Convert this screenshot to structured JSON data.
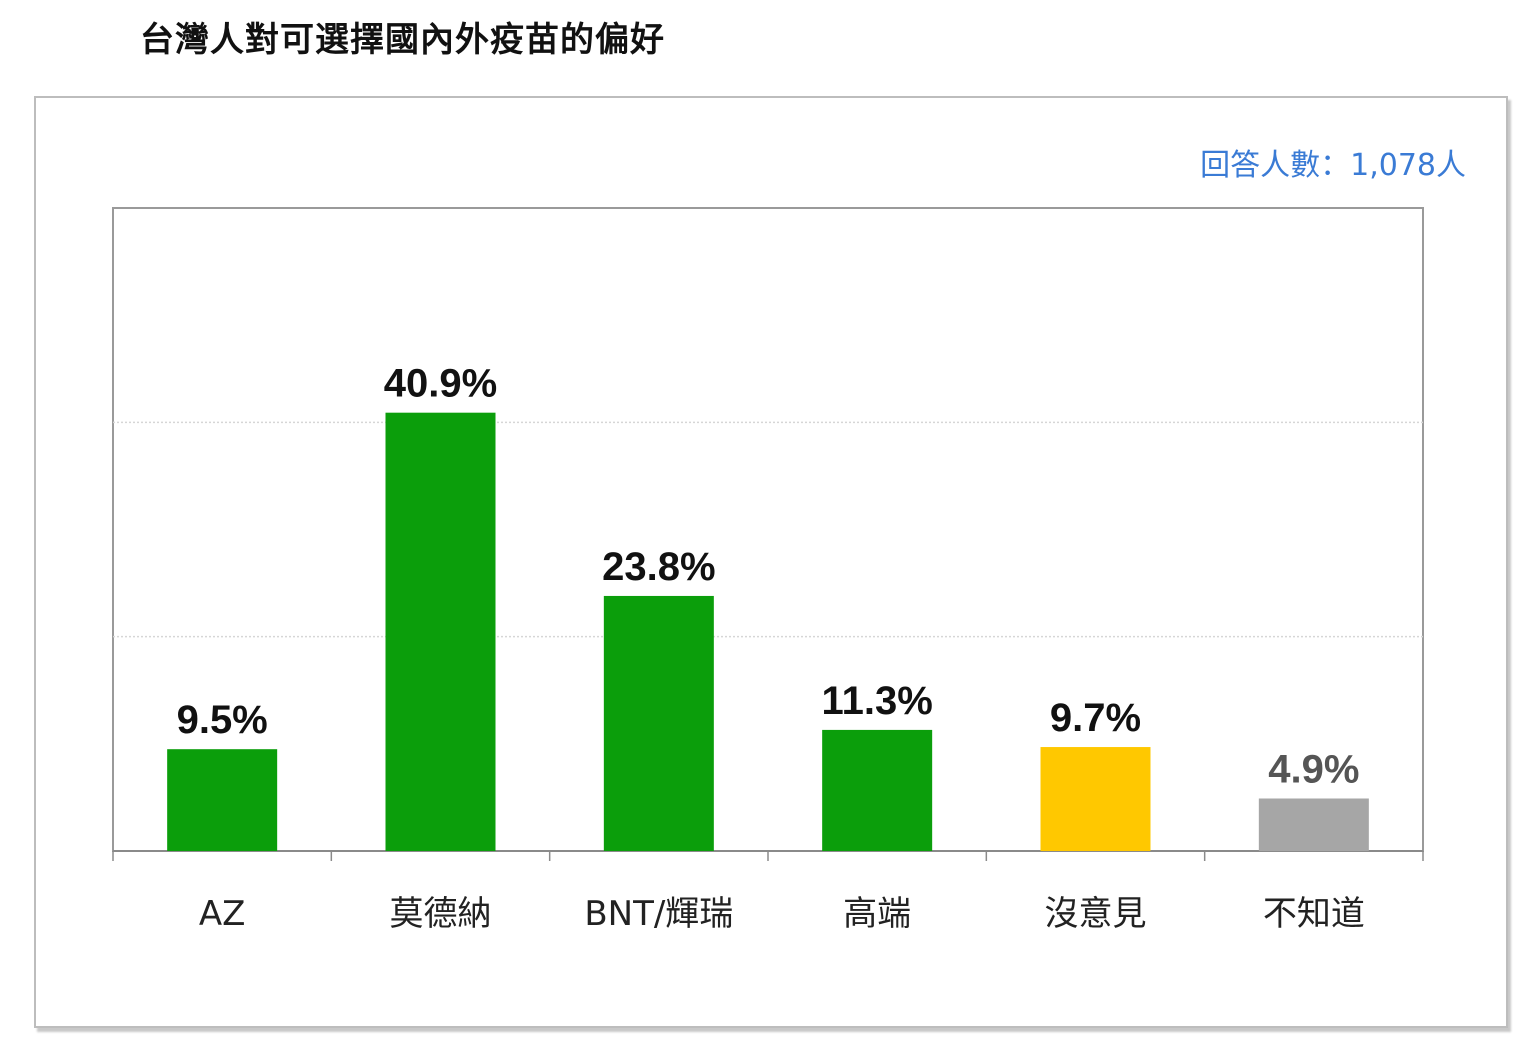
{
  "chart_data": {
    "type": "bar",
    "title": "台灣人對可選擇國內外疫苗的偏好",
    "subtitle": "回答人數：1,078人",
    "categories": [
      "AZ",
      "莫德納",
      "BNT/輝瑞",
      "高端",
      "沒意見",
      "不知道"
    ],
    "values": [
      9.5,
      40.9,
      23.8,
      11.3,
      9.7,
      4.9
    ],
    "value_labels": [
      "9.5%",
      "40.9%",
      "23.8%",
      "11.3%",
      "9.7%",
      "4.9%"
    ],
    "bar_colors": [
      "#0b9e0b",
      "#0b9e0b",
      "#0b9e0b",
      "#0b9e0b",
      "#ffc800",
      "#a6a6a6"
    ],
    "label_colors": [
      "#111111",
      "#111111",
      "#111111",
      "#111111",
      "#111111",
      "#555555"
    ],
    "ylim": [
      0,
      60
    ],
    "gridlines": [
      20,
      40
    ],
    "xlabel": "",
    "ylabel": "",
    "legend": "none"
  }
}
